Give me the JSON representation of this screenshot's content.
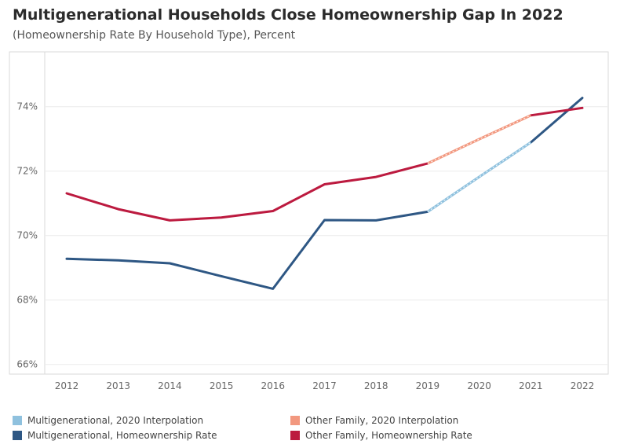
{
  "header": {
    "title": "Multigenerational Households Close Homeownership Gap In 2022",
    "subtitle": "(Homeownership Rate By Household Type), Percent"
  },
  "chart_data": {
    "type": "line",
    "title": "Multigenerational Households Close Homeownership Gap In 2022",
    "subtitle": "(Homeownership Rate By Household Type), Percent",
    "xlabel": "",
    "ylabel": "",
    "x": [
      "2012",
      "2013",
      "2014",
      "2015",
      "2016",
      "2017",
      "2018",
      "2019",
      "2020",
      "2021",
      "2022"
    ],
    "ylim": [
      65.7,
      75.7
    ],
    "y_ticks": [
      66,
      68,
      70,
      72,
      74
    ],
    "y_tick_labels": [
      "66%",
      "68%",
      "70%",
      "72%",
      "74%"
    ],
    "grid": true,
    "legend_position": "bottom",
    "series": [
      {
        "name": "Multigenerational, Homeownership Rate",
        "color": "#2e5784",
        "style": "solid",
        "values": [
          69.28,
          69.23,
          69.14,
          68.74,
          68.35,
          70.48,
          70.47,
          70.74,
          null,
          72.89,
          74.27
        ]
      },
      {
        "name": "Multigenerational, 2020 Interpolation",
        "color": "#8fc1de",
        "style": "dashed",
        "values": [
          null,
          null,
          null,
          null,
          null,
          null,
          null,
          70.74,
          71.82,
          72.89,
          null
        ]
      },
      {
        "name": "Other Family, Homeownership Rate",
        "color": "#bc1a3f",
        "style": "solid",
        "values": [
          71.31,
          70.82,
          70.47,
          70.56,
          70.76,
          71.59,
          71.82,
          72.24,
          null,
          73.73,
          73.96
        ]
      },
      {
        "name": "Other Family, 2020 Interpolation",
        "color": "#f2987f",
        "style": "dashed",
        "values": [
          null,
          null,
          null,
          null,
          null,
          null,
          null,
          72.24,
          72.99,
          73.73,
          null
        ]
      }
    ]
  },
  "legend": {
    "items": [
      {
        "label": "Multigenerational, 2020 Interpolation",
        "color": "#8fc1de"
      },
      {
        "label": "Other Family, 2020 Interpolation",
        "color": "#f2987f"
      },
      {
        "label": "Multigenerational, Homeownership Rate",
        "color": "#2e5784"
      },
      {
        "label": "Other Family, Homeownership Rate",
        "color": "#bc1a3f"
      }
    ]
  }
}
